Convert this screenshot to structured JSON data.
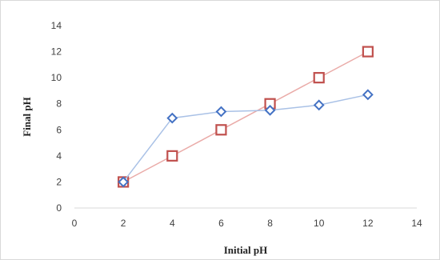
{
  "chart_data": {
    "type": "scatter",
    "title": "",
    "xlabel": "Initial pH",
    "ylabel": "Final pH",
    "xlim": [
      0,
      14
    ],
    "ylim": [
      0,
      14
    ],
    "xticks": [
      0,
      2,
      4,
      6,
      8,
      10,
      12,
      14
    ],
    "yticks": [
      0,
      2,
      4,
      6,
      8,
      10,
      12,
      14
    ],
    "grid": false,
    "legend": "none",
    "series": [
      {
        "color": "#4472c4",
        "line_color": "#a9c1e6",
        "marker": "diamond",
        "points": [
          [
            2,
            2
          ],
          [
            4,
            6.9
          ],
          [
            6,
            7.4
          ],
          [
            8,
            7.5
          ],
          [
            10,
            7.9
          ],
          [
            12,
            8.7
          ]
        ]
      },
      {
        "color": "#c0504d",
        "line_color": "#eaaba8",
        "marker": "square",
        "points": [
          [
            2,
            2
          ],
          [
            4,
            4
          ],
          [
            6,
            6
          ],
          [
            8,
            8
          ],
          [
            10,
            10
          ],
          [
            12,
            12
          ]
        ]
      }
    ]
  }
}
